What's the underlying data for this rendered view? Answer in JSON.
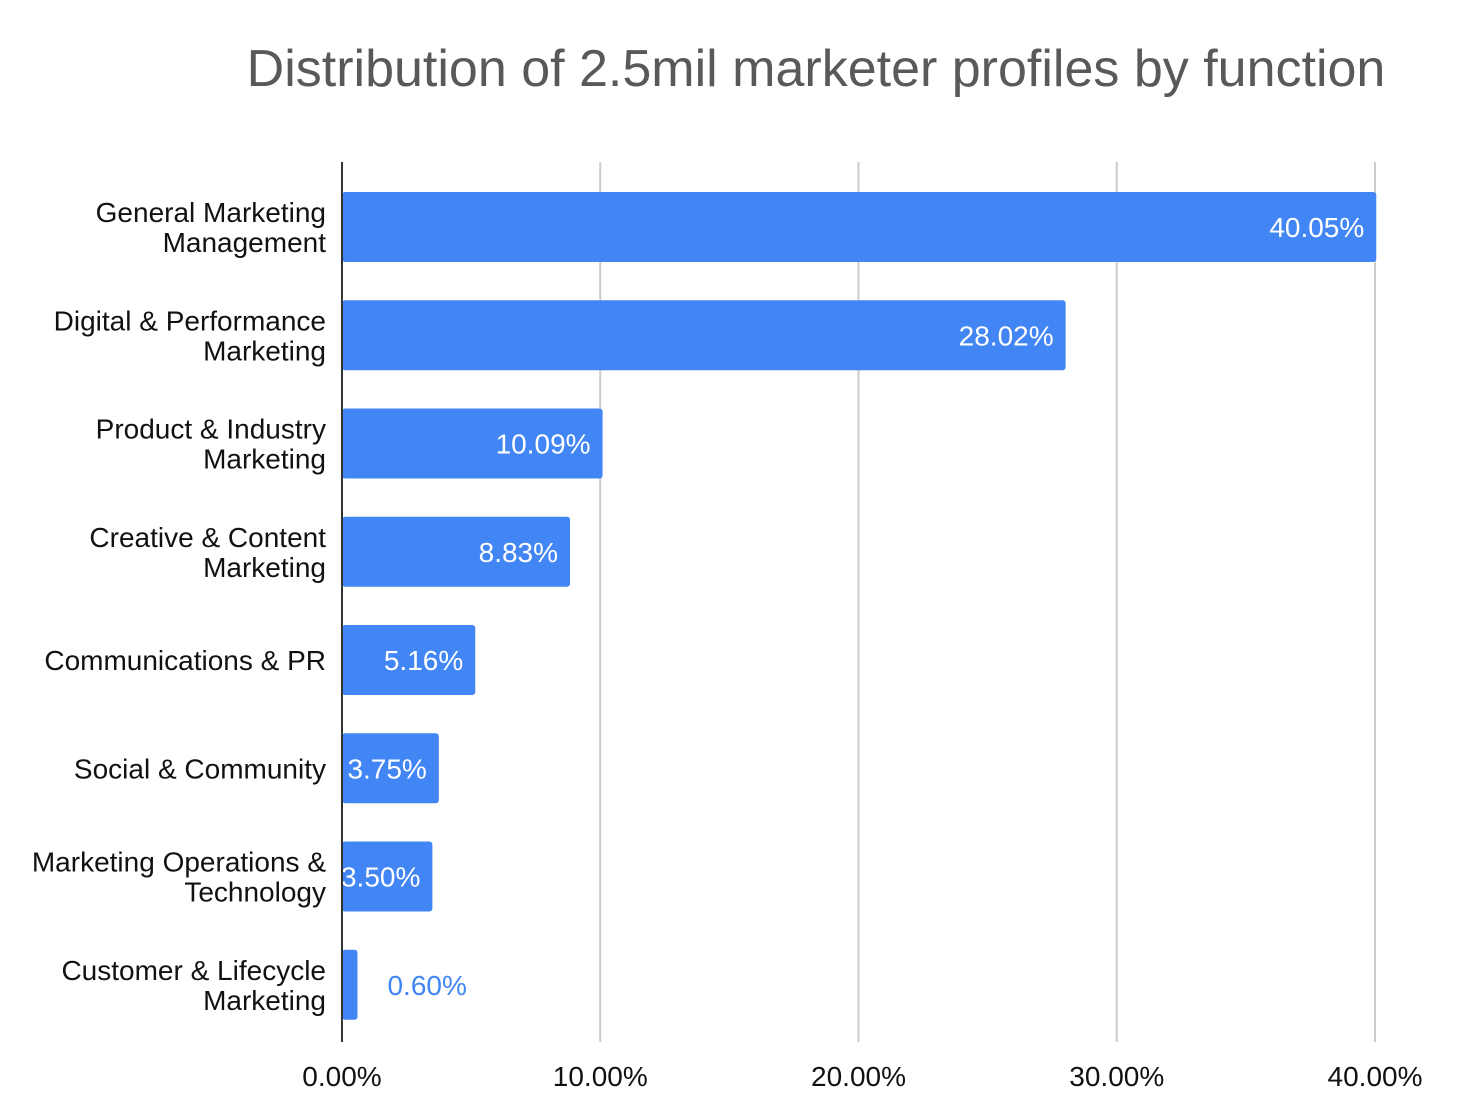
{
  "chart_data": {
    "type": "bar",
    "orientation": "horizontal",
    "title": "Distribution of 2.5mil marketer profiles by function",
    "categories": [
      "General Marketing\nManagement",
      "Digital & Performance\nMarketing",
      "Product & Industry\nMarketing",
      "Creative & Content\nMarketing",
      "Communications & PR",
      "Social & Community",
      "Marketing Operations &\nTechnology",
      "Customer & Lifecycle\nMarketing"
    ],
    "values": [
      40.05,
      28.02,
      10.09,
      8.83,
      5.16,
      3.75,
      3.5,
      0.6
    ],
    "value_labels": [
      "40.05%",
      "28.02%",
      "10.09%",
      "8.83%",
      "5.16%",
      "3.75%",
      "3.50%",
      "0.60%"
    ],
    "xlim": [
      0,
      40
    ],
    "x_ticks": [
      0,
      10,
      20,
      30,
      40
    ],
    "x_tick_labels": [
      "0.00%",
      "10.00%",
      "20.00%",
      "30.00%",
      "40.00%"
    ],
    "xlabel": "",
    "ylabel": "",
    "grid": "vertical",
    "legend": "none",
    "colors": {
      "bar": "#4285f4",
      "label_inside": "#ffffff",
      "label_outside": "#4285f4",
      "grid": "#cccccc",
      "axis": "#333333",
      "title": "#595959"
    }
  }
}
